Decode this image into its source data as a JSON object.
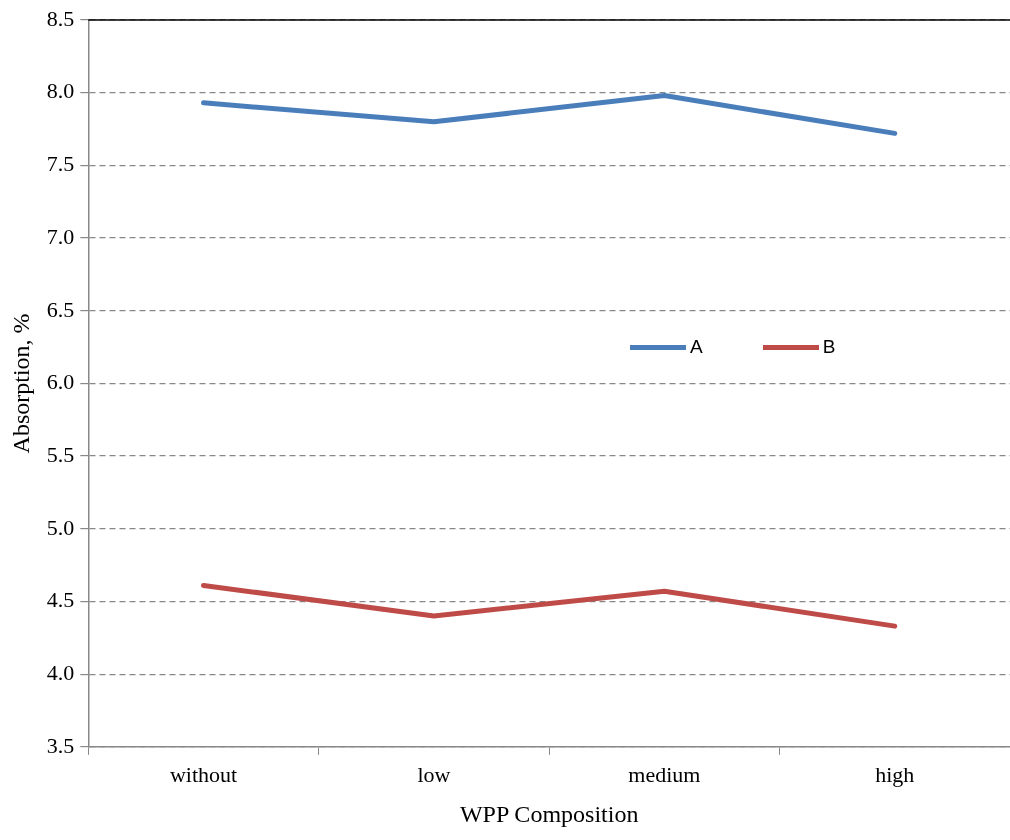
{
  "chart_data": {
    "type": "line",
    "xlabel": "WPP Composition",
    "ylabel": "Absorption, %",
    "categories": [
      "without",
      "low",
      "medium",
      "high"
    ],
    "series": [
      {
        "name": "A",
        "color": "#4a7ebb",
        "values": [
          7.93,
          7.8,
          7.98,
          7.72
        ]
      },
      {
        "name": "B",
        "color": "#be4b48",
        "values": [
          4.61,
          4.4,
          4.57,
          4.33
        ]
      }
    ],
    "ylim": [
      3.5,
      8.5
    ],
    "yticks": [
      {
        "value": 3.5,
        "label": "3.5"
      },
      {
        "value": 4,
        "label": "4.0"
      },
      {
        "value": 4.5,
        "label": "4.5"
      },
      {
        "value": 5,
        "label": "5.0"
      },
      {
        "value": 5.5,
        "label": "5.5"
      },
      {
        "value": 6,
        "label": "6.0"
      },
      {
        "value": 6.5,
        "label": "6.5"
      },
      {
        "value": 7,
        "label": "7.0"
      },
      {
        "value": 7.5,
        "label": "7.5"
      },
      {
        "value": 8,
        "label": "8.0"
      },
      {
        "value": 8.5,
        "label": "8.5"
      }
    ],
    "grid": "y",
    "legend": "right",
    "marker": "none",
    "line_style": "solid"
  }
}
